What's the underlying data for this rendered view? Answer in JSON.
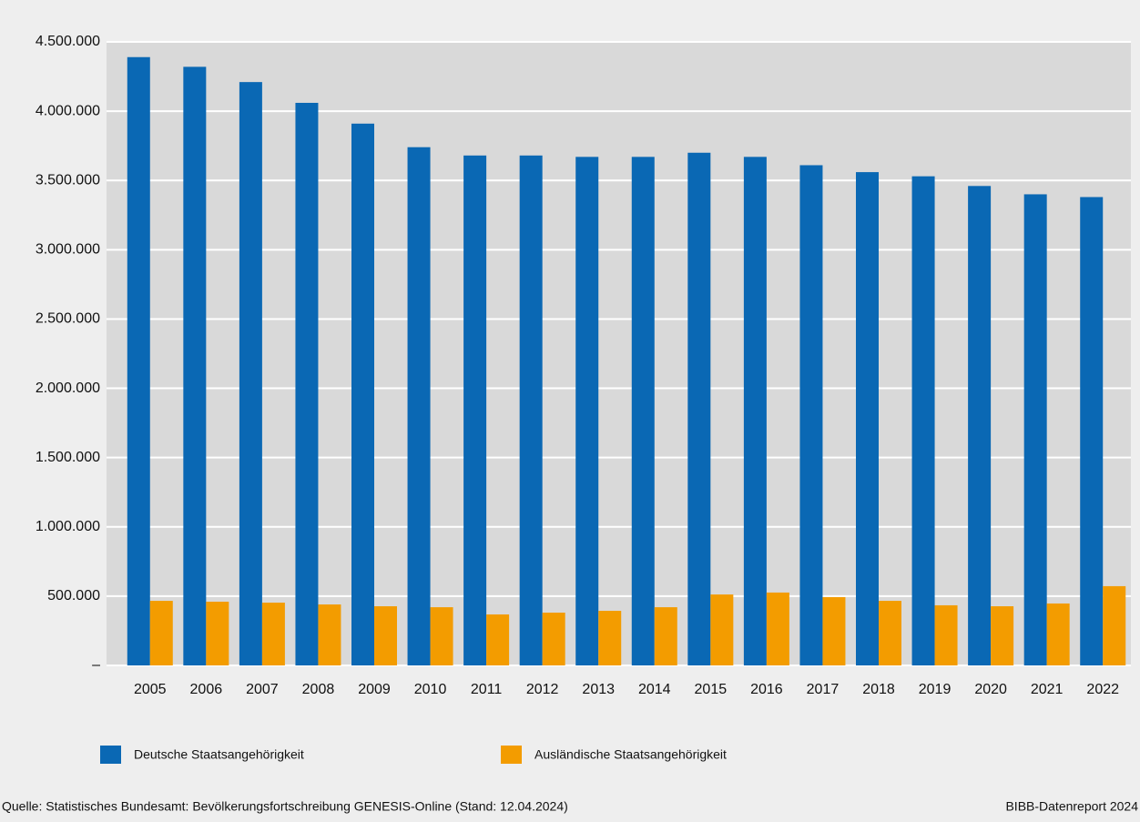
{
  "chart_data": {
    "type": "bar",
    "categories": [
      "2005",
      "2006",
      "2007",
      "2008",
      "2009",
      "2010",
      "2011",
      "2012",
      "2013",
      "2014",
      "2015",
      "2016",
      "2017",
      "2018",
      "2019",
      "2020",
      "2021",
      "2022"
    ],
    "series": [
      {
        "name": "Deutsche Staatsangehörigkeit",
        "color": "#0a68b4",
        "values": [
          4390000,
          4320000,
          4210000,
          4060000,
          3910000,
          3740000,
          3680000,
          3680000,
          3670000,
          3670000,
          3700000,
          3670000,
          3610000,
          3560000,
          3530000,
          3460000,
          3400000,
          3380000
        ]
      },
      {
        "name": "Ausländische Staatsangehörigkeit",
        "color": "#f39c00",
        "values": [
          466000,
          460000,
          453000,
          440000,
          427000,
          420000,
          368000,
          381000,
          394000,
          420000,
          512000,
          526000,
          493000,
          466000,
          434000,
          427000,
          447000,
          572000
        ]
      }
    ],
    "ylim": [
      0,
      4500000
    ],
    "yticks": [
      {
        "value": 0,
        "label": "–"
      },
      {
        "value": 500000,
        "label": "500.000"
      },
      {
        "value": 1000000,
        "label": "1.000.000"
      },
      {
        "value": 1500000,
        "label": "1.500.000"
      },
      {
        "value": 2000000,
        "label": "2.000.000"
      },
      {
        "value": 2500000,
        "label": "2.500.000"
      },
      {
        "value": 3000000,
        "label": "3.000.000"
      },
      {
        "value": 3500000,
        "label": "3.500.000"
      },
      {
        "value": 4000000,
        "label": "4.000.000"
      },
      {
        "value": 4500000,
        "label": "4.500.000"
      }
    ],
    "grid": true,
    "legend": "bottom",
    "source": "Quelle: Statistisches Bundesamt: Bevölkerungsfortschreibung GENESIS-Online (Stand: 12.04.2024)",
    "credit": "BIBB-Datenreport 2024"
  }
}
